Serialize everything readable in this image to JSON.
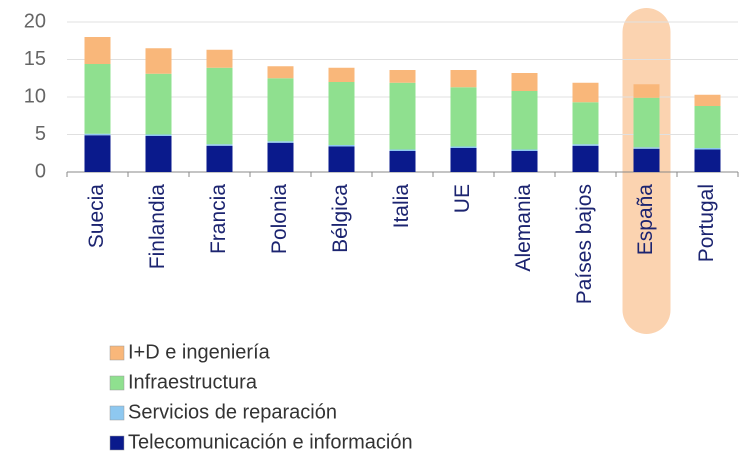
{
  "chart_data": {
    "type": "stacked_bar",
    "categories": [
      "Suecia",
      "Finlandia",
      "Francia",
      "Polonia",
      "Bélgica",
      "Italia",
      "UE",
      "Alemania",
      "Países bajos",
      "España",
      "Portugal"
    ],
    "series": [
      {
        "name": "Telecomunicación e información",
        "color": "#0a1a8c",
        "values": [
          4.9,
          4.8,
          3.5,
          3.9,
          3.4,
          2.8,
          3.2,
          2.8,
          3.5,
          3.1,
          3.0
        ]
      },
      {
        "name": "Servicios de reparación",
        "color": "#8ec8f0",
        "values": [
          0.2,
          0.2,
          0.2,
          0.2,
          0.2,
          0.2,
          0.2,
          0.2,
          0.2,
          0.2,
          0.2
        ]
      },
      {
        "name": "Infraestructura",
        "color": "#8fe08f",
        "values": [
          9.3,
          8.1,
          10.2,
          8.4,
          8.4,
          8.9,
          7.9,
          7.8,
          5.6,
          6.6,
          5.6
        ]
      },
      {
        "name": "I+D e ingeniería",
        "color": "#f9b77a",
        "values": [
          3.6,
          3.4,
          2.4,
          1.6,
          1.9,
          1.7,
          2.3,
          2.4,
          2.6,
          1.8,
          1.5
        ]
      }
    ],
    "ylim": [
      0,
      20
    ],
    "yticks": [
      0,
      5,
      10,
      15,
      20
    ],
    "grid": true
  }
}
